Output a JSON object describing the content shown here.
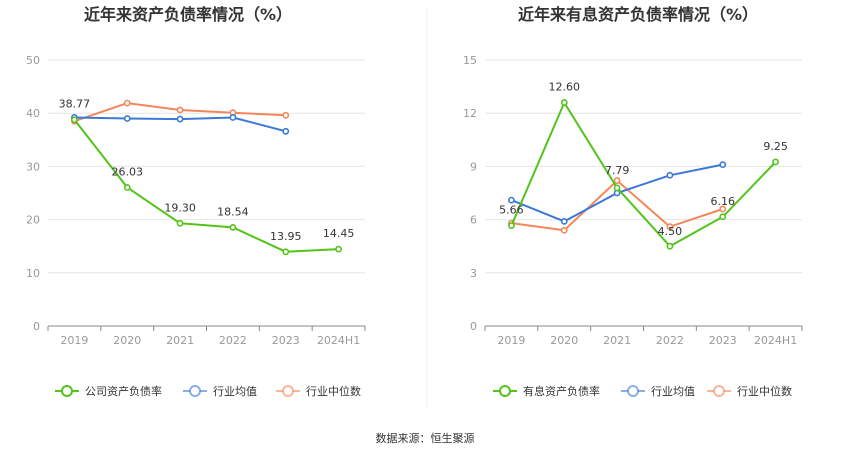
{
  "source": "数据来源：恒生聚源",
  "colors": {
    "company": "#52c41a",
    "avg": "#3c78d8",
    "median": "#f4875a",
    "grid": "#e6e6e6",
    "axis": "#888888"
  },
  "chart_data": [
    {
      "type": "line",
      "title": "近年来资产负债率情况（%）",
      "categories": [
        "2019",
        "2020",
        "2021",
        "2022",
        "2023",
        "2024H1"
      ],
      "ylim": [
        0,
        50
      ],
      "yticks": [
        "0",
        "10",
        "20",
        "30",
        "40",
        "50"
      ],
      "grid": true,
      "legend_position": "bottom",
      "series": [
        {
          "name": "公司资产负债率",
          "key": "company",
          "values": [
            38.77,
            26.03,
            19.3,
            18.54,
            13.95,
            14.45
          ],
          "labels": [
            "38.77",
            "26.03",
            "19.30",
            "18.54",
            "13.95",
            "14.45"
          ]
        },
        {
          "name": "行业均值",
          "key": "avg",
          "values": [
            39.2,
            39.0,
            38.9,
            39.2,
            36.6,
            null
          ]
        },
        {
          "name": "行业中位数",
          "key": "median",
          "values": [
            38.5,
            41.9,
            40.6,
            40.1,
            39.6,
            null
          ]
        }
      ]
    },
    {
      "type": "line",
      "title": "近年来有息资产负债率情况（%）",
      "categories": [
        "2019",
        "2020",
        "2021",
        "2022",
        "2023",
        "2024H1"
      ],
      "ylim": [
        0,
        15
      ],
      "yticks": [
        "0",
        "3",
        "6",
        "9",
        "12",
        "15"
      ],
      "grid": true,
      "legend_position": "bottom",
      "series": [
        {
          "name": "有息资产负债率",
          "key": "company",
          "values": [
            5.66,
            12.6,
            7.79,
            4.5,
            6.16,
            9.25
          ],
          "labels": [
            "5.66",
            "12.60",
            "7.79",
            "4.50",
            "6.16",
            "9.25"
          ]
        },
        {
          "name": "行业均值",
          "key": "avg",
          "values": [
            7.1,
            5.9,
            7.5,
            8.5,
            9.1,
            null
          ]
        },
        {
          "name": "行业中位数",
          "key": "median",
          "values": [
            5.8,
            5.4,
            8.2,
            5.6,
            6.6,
            null
          ]
        }
      ]
    }
  ]
}
